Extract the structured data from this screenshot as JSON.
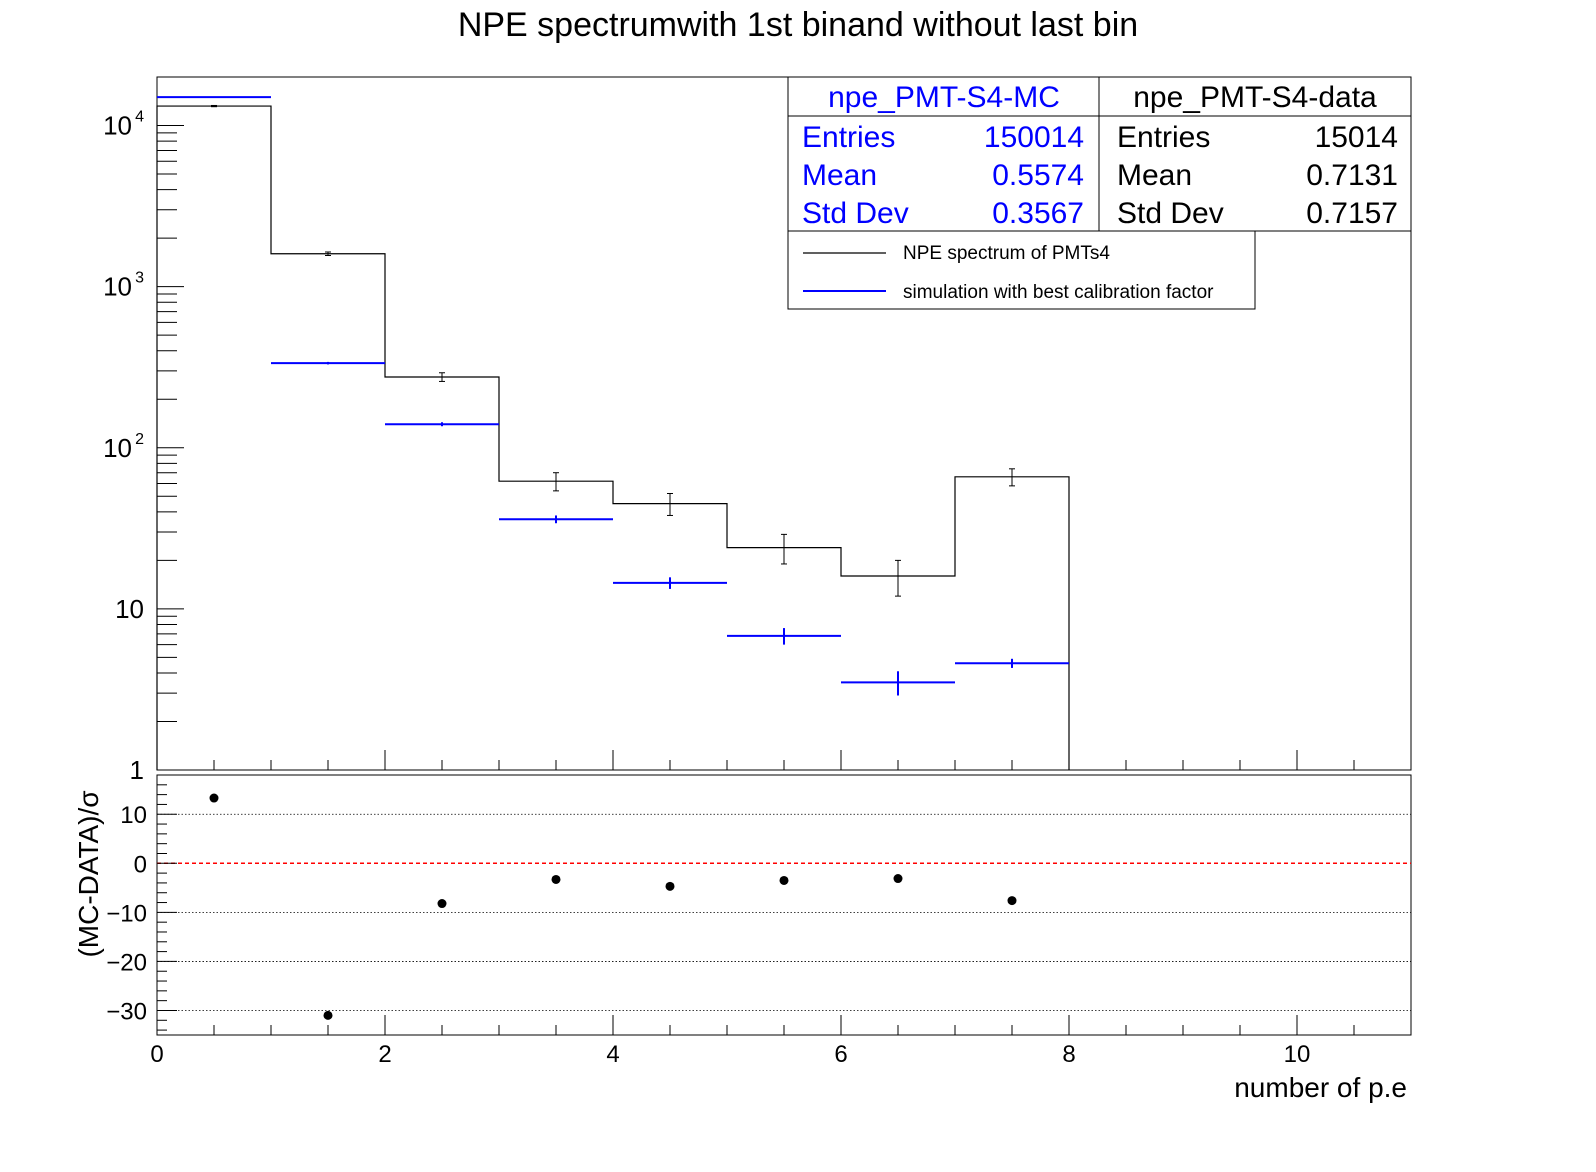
{
  "title": "NPE spectrumwith 1st binand without last bin",
  "stats_mc": {
    "name": "npe_PMT-S4-MC",
    "color": "#0000ff",
    "rows": [
      {
        "label": "Entries",
        "value": "150014"
      },
      {
        "label": "Mean",
        "value": "0.5574"
      },
      {
        "label": "Std Dev",
        "value": "0.3567"
      }
    ]
  },
  "stats_data": {
    "name": "npe_PMT-S4-data",
    "color": "#000000",
    "rows": [
      {
        "label": "Entries",
        "value": "15014"
      },
      {
        "label": "Mean",
        "value": "0.7131"
      },
      {
        "label": "Std Dev",
        "value": "0.7157"
      }
    ]
  },
  "legend": [
    {
      "label": "NPE spectrum of PMTs4",
      "color": "#000000"
    },
    {
      "label": "simulation with best calibration factor",
      "color": "#0000ff"
    }
  ],
  "chart_data": [
    {
      "type": "histogram",
      "title": "NPE spectrumwith 1st binand without last bin",
      "xlim": [
        0,
        11
      ],
      "ylim": [
        1,
        20000
      ],
      "log_y": true,
      "y_tick_labels": [
        "1",
        "10",
        "10^2",
        "10^3",
        "10^4"
      ],
      "bin_edges": [
        0,
        1,
        2,
        3,
        4,
        5,
        6,
        7,
        8
      ],
      "series": [
        {
          "name": "npe_PMT-S4-data",
          "color": "#000000",
          "style": "step",
          "values": [
            13200,
            1600,
            275,
            62,
            45,
            24,
            16,
            66
          ],
          "errors": [
            115,
            40,
            17,
            8,
            7,
            5,
            4,
            8
          ]
        },
        {
          "name": "npe_PMT-S4-MC",
          "color": "#0000ff",
          "style": "bars",
          "values": [
            15000,
            335,
            140,
            36,
            14.5,
            6.8,
            3.5,
            4.6
          ],
          "errors": [
            120,
            6,
            4,
            2,
            1.2,
            0.8,
            0.6,
            0.3
          ]
        }
      ]
    },
    {
      "type": "scatter",
      "xlabel": "number of p.e",
      "ylabel": "(MC-DATA)/σ",
      "xlim": [
        0,
        11
      ],
      "ylim": [
        -35,
        18
      ],
      "x_ticks": [
        0,
        2,
        4,
        6,
        8,
        10
      ],
      "y_ticks": [
        -30,
        -20,
        -10,
        0,
        10
      ],
      "grid_y": [
        -30,
        -20,
        -10,
        10
      ],
      "reference_line": {
        "y": 0,
        "color": "#ff0000"
      },
      "x": [
        0.5,
        1.5,
        2.5,
        3.5,
        4.5,
        5.5,
        6.5,
        7.5
      ],
      "y": [
        13.3,
        -31.0,
        -8.2,
        -3.3,
        -4.7,
        -3.5,
        -3.1,
        -7.6
      ]
    }
  ]
}
